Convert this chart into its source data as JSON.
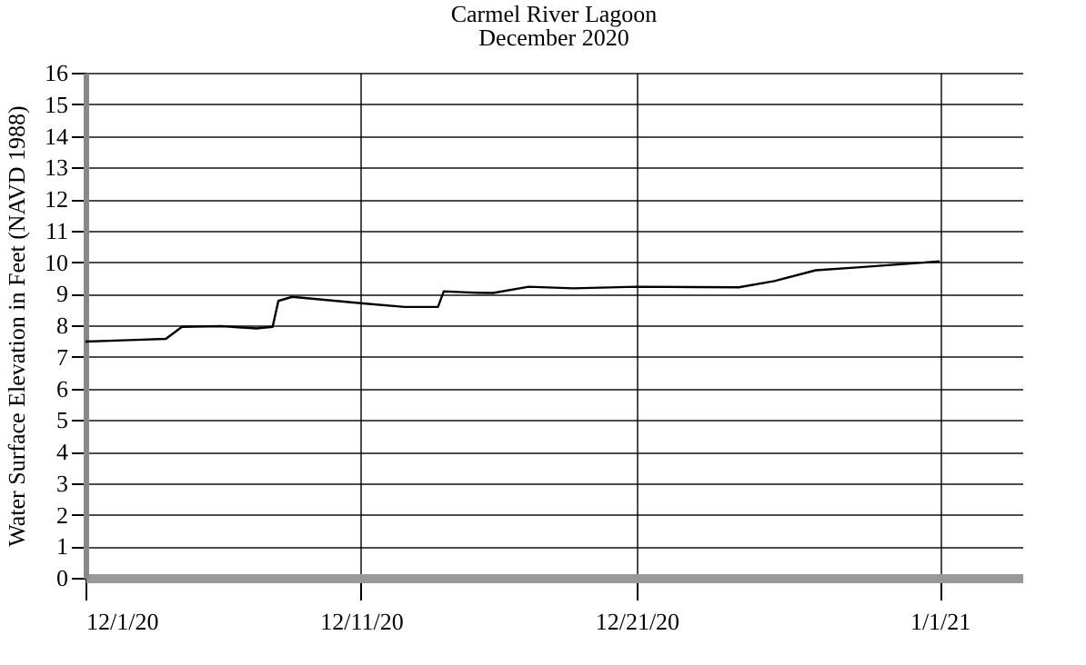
{
  "chart_data": {
    "type": "line",
    "title": "Carmel River Lagoon",
    "subtitle": "December 2020",
    "ylabel": "Water Surface Elevation in Feet (NAVD 1988)",
    "x": [
      "2020-12-01T00:00",
      "2020-12-02T14:00",
      "2020-12-03T22:00",
      "2020-12-04T12:00",
      "2020-12-05T22:00",
      "2020-12-07T05:00",
      "2020-12-07T19:00",
      "2020-12-08T00:00",
      "2020-12-08T12:00",
      "2020-12-11T02:00",
      "2020-12-12T14:00",
      "2020-12-13T19:00",
      "2020-12-14T00:00",
      "2020-12-15T05:00",
      "2020-12-15T19:00",
      "2020-12-17T02:00",
      "2020-12-18T17:00",
      "2020-12-21T00:00",
      "2020-12-24T17:00",
      "2020-12-26T00:00",
      "2020-12-27T12:00",
      "2020-12-29T00:00",
      "2021-01-01T00:00"
    ],
    "series": [
      {
        "color": "#000000",
        "values": [
          7.48,
          7.53,
          7.57,
          7.95,
          7.97,
          7.9,
          7.95,
          8.77,
          8.9,
          8.69,
          8.58,
          8.58,
          9.07,
          9.03,
          9.02,
          9.22,
          9.17,
          9.22,
          9.2,
          9.4,
          9.74,
          9.83,
          10.02
        ]
      }
    ],
    "xlim": [
      "2020-12-01",
      "2021-01-04"
    ],
    "xticks": [
      {
        "value": "2020-12-01",
        "label": "12/1/20"
      },
      {
        "value": "2020-12-11",
        "label": "12/11/20"
      },
      {
        "value": "2020-12-21",
        "label": "12/21/20"
      },
      {
        "value": "2021-01-01",
        "label": "1/1/21"
      }
    ],
    "ylim": [
      0,
      16
    ],
    "yticks": [
      0,
      1,
      2,
      3,
      4,
      5,
      6,
      7,
      8,
      9,
      10,
      11,
      12,
      13,
      14,
      15,
      16
    ],
    "grid": true,
    "marker": "none",
    "line_style": "solid"
  }
}
